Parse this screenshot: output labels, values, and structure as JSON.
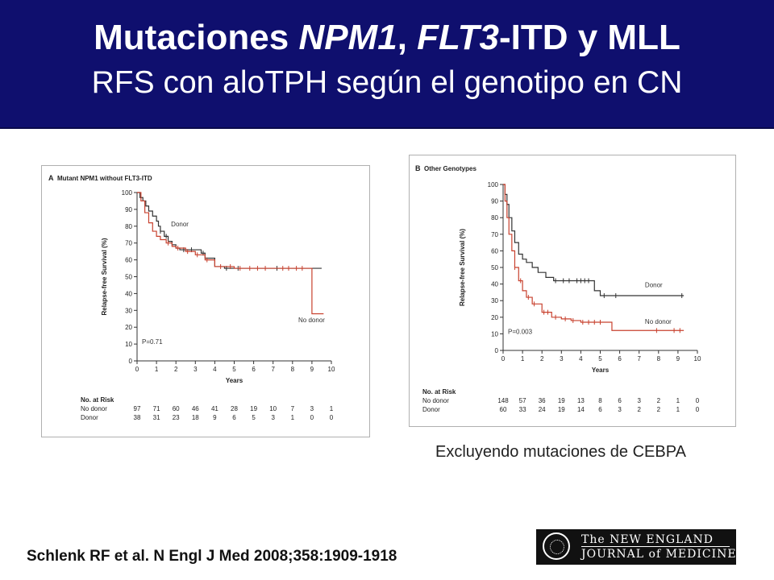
{
  "header": {
    "title_part1": "Mutaciones ",
    "title_part2": "NPM1",
    "title_part3": ", ",
    "title_part4": "FLT3",
    "title_part5": "-ITD y MLL",
    "subtitle": "RFS con aloTPH según el genotipo en CN"
  },
  "colors": {
    "banner": "#0f0f6e",
    "donor": "#333333",
    "no_donor": "#c8412e"
  },
  "note": "Excluyendo mutaciones de CEBPA",
  "citation": "Schlenk RF et al. N Engl J Med 2008;358:1909-1918",
  "logo": {
    "line1": "The NEW ENGLAND",
    "line2": "JOURNAL of MEDICINE"
  },
  "chart_data": [
    {
      "type": "line",
      "panel_letter": "A",
      "title": "Mutant NPM1 without FLT3-ITD",
      "xlabel": "Years",
      "ylabel": "Relapse-free Survival (%)",
      "xlim": [
        0,
        10
      ],
      "ylim": [
        0,
        100
      ],
      "xticks": [
        0,
        1,
        2,
        3,
        4,
        5,
        6,
        7,
        8,
        9,
        10
      ],
      "yticks": [
        0,
        10,
        20,
        30,
        40,
        50,
        60,
        70,
        80,
        90,
        100
      ],
      "p_value": "P=0.71",
      "series": [
        {
          "name": "Donor",
          "color_key": "donor",
          "x": [
            0,
            0.15,
            0.3,
            0.45,
            0.6,
            0.8,
            1.0,
            1.1,
            1.2,
            1.4,
            1.6,
            1.8,
            2.0,
            2.2,
            2.5,
            3.0,
            3.3,
            3.5,
            4.0,
            4.5,
            5.0,
            6.0,
            7.0,
            8.0,
            9.0,
            9.5
          ],
          "y": [
            100,
            97,
            95,
            92,
            89,
            86,
            83,
            80,
            77,
            74,
            71,
            69,
            67,
            66,
            66,
            66,
            64,
            61,
            56,
            55,
            55,
            55,
            55,
            55,
            55,
            55
          ],
          "censor_x": [
            1.2,
            1.5,
            2.4,
            2.8,
            3.4,
            4.6,
            5.2,
            7.2
          ]
        },
        {
          "name": "No donor",
          "color_key": "no_donor",
          "x": [
            0,
            0.2,
            0.4,
            0.6,
            0.8,
            1.0,
            1.2,
            1.5,
            1.8,
            2.0,
            2.5,
            3.0,
            3.5,
            4.0,
            5.0,
            6.0,
            7.0,
            8.0,
            8.9,
            9.0,
            9.6
          ],
          "y": [
            100,
            95,
            88,
            82,
            77,
            74,
            72,
            70,
            68,
            67,
            65,
            63,
            60,
            56,
            55,
            55,
            55,
            55,
            55,
            28,
            28
          ],
          "censor_x": [
            1.6,
            2.1,
            2.6,
            3.1,
            3.6,
            4.3,
            4.8,
            5.3,
            5.8,
            6.2,
            6.6,
            7.5,
            7.8,
            8.2,
            8.5
          ]
        }
      ],
      "annotations": [
        {
          "text": "Donor",
          "x": 1.75,
          "y": 80
        },
        {
          "text": "No donor",
          "x": 8.3,
          "y": 23
        }
      ],
      "risk_table": {
        "header": "No. at Risk",
        "rows": [
          {
            "label": "No donor",
            "values": [
              "97",
              "71",
              "60",
              "46",
              "41",
              "28",
              "19",
              "10",
              "7",
              "3",
              "1"
            ]
          },
          {
            "label": "Donor",
            "values": [
              "38",
              "31",
              "23",
              "18",
              "9",
              "6",
              "5",
              "3",
              "1",
              "0",
              "0"
            ]
          }
        ]
      }
    },
    {
      "type": "line",
      "panel_letter": "B",
      "title": "Other Genotypes",
      "xlabel": "Years",
      "ylabel": "Relapse-free Survival (%)",
      "xlim": [
        0,
        10
      ],
      "ylim": [
        0,
        100
      ],
      "xticks": [
        0,
        1,
        2,
        3,
        4,
        5,
        6,
        7,
        8,
        9,
        10
      ],
      "yticks": [
        0,
        10,
        20,
        30,
        40,
        50,
        60,
        70,
        80,
        90,
        100
      ],
      "p_value": "P=0.003",
      "series": [
        {
          "name": "Donor",
          "color_key": "donor",
          "x": [
            0,
            0.1,
            0.2,
            0.3,
            0.45,
            0.6,
            0.8,
            1.0,
            1.2,
            1.5,
            1.8,
            2.2,
            2.6,
            3.0,
            3.5,
            4.0,
            4.5,
            4.7,
            5.0,
            6.0,
            7.0,
            8.0,
            9.0,
            9.3
          ],
          "y": [
            100,
            94,
            88,
            80,
            72,
            65,
            58,
            55,
            53,
            50,
            47,
            44,
            42,
            42,
            42,
            42,
            42,
            36,
            33,
            33,
            33,
            33,
            33,
            33
          ],
          "censor_x": [
            2.7,
            3.1,
            3.4,
            3.8,
            4.0,
            4.2,
            4.4,
            5.2,
            5.8,
            9.2
          ]
        },
        {
          "name": "No donor",
          "color_key": "no_donor",
          "x": [
            0,
            0.1,
            0.2,
            0.3,
            0.45,
            0.6,
            0.8,
            1.0,
            1.2,
            1.5,
            2.0,
            2.5,
            3.0,
            3.5,
            4.0,
            5.0,
            5.6,
            6.0,
            7.0,
            8.0,
            9.0,
            9.3
          ],
          "y": [
            100,
            90,
            80,
            70,
            60,
            50,
            42,
            36,
            32,
            28,
            23,
            20,
            19,
            18,
            17,
            17,
            12,
            12,
            12,
            12,
            12,
            12
          ],
          "censor_x": [
            0.6,
            0.9,
            1.3,
            1.6,
            2.1,
            2.3,
            2.7,
            3.2,
            3.6,
            4.1,
            4.4,
            4.7,
            5.0,
            7.9,
            8.8,
            9.1
          ]
        }
      ],
      "annotations": [
        {
          "text": "Donor",
          "x": 7.3,
          "y": 38
        },
        {
          "text": "No donor",
          "x": 7.3,
          "y": 16
        }
      ],
      "risk_table": {
        "header": "No. at Risk",
        "rows": [
          {
            "label": "No donor",
            "values": [
              "148",
              "57",
              "36",
              "19",
              "13",
              "8",
              "6",
              "3",
              "2",
              "1",
              "0"
            ]
          },
          {
            "label": "Donor",
            "values": [
              "60",
              "33",
              "24",
              "19",
              "14",
              "6",
              "3",
              "2",
              "2",
              "1",
              "0"
            ]
          }
        ]
      }
    }
  ]
}
